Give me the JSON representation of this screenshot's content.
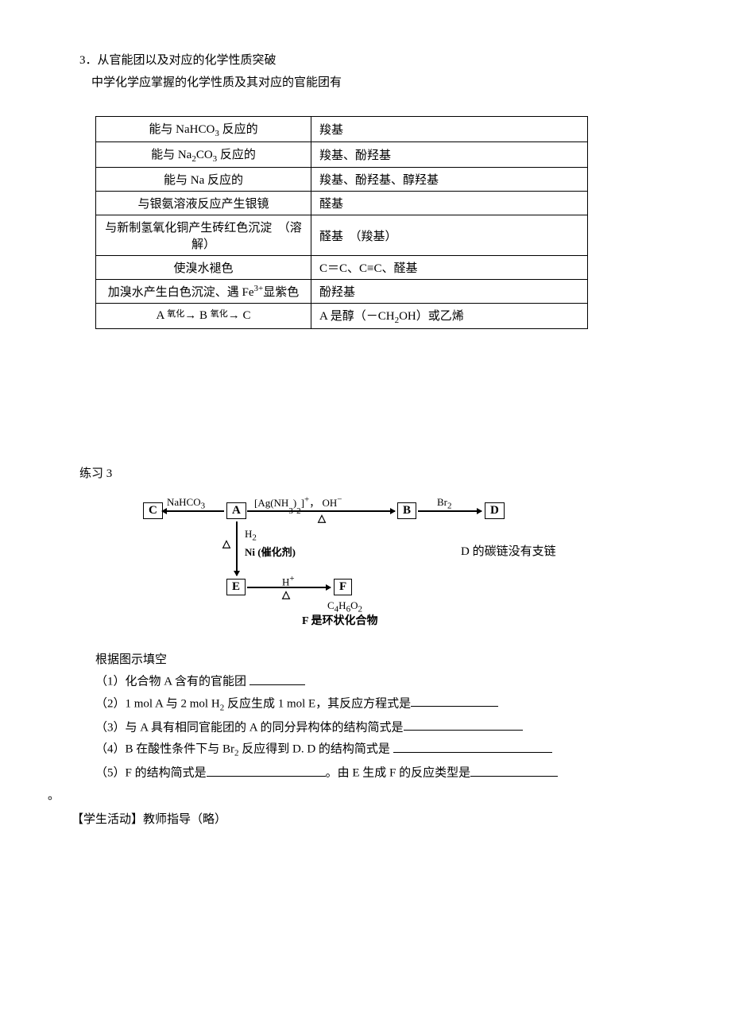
{
  "heading": {
    "line1": "3．从官能团以及对应的化学性质突破",
    "line2": "中学化学应掌握的化学性质及其对应的官能团有"
  },
  "table": {
    "rows": [
      {
        "left_html": "能与 NaHCO<span class='sub'>3</span> 反应的",
        "right": "羧基",
        "left_align": "c"
      },
      {
        "left_html": "能与 Na<span class='sub'>2</span>CO<span class='sub'>3</span> 反应的",
        "right": "羧基、酚羟基",
        "left_align": "c"
      },
      {
        "left_html": "能与 Na 反应的",
        "right": "羧基、酚羟基、醇羟基",
        "left_align": "c"
      },
      {
        "left_html": "与银氨溶液反应产生银镜",
        "right": "醛基",
        "left_align": "c"
      },
      {
        "left_html": "与新制氢氧化铜产生砖红色沉淀　（溶解）",
        "right": "醛基　（羧基）",
        "left_align": "c"
      },
      {
        "left_html": "使溴水褪色",
        "right": "C＝C、C≡C、醛基",
        "left_align": "c"
      },
      {
        "left_html": "加溴水产生白色沉淀、遇 Fe<span class='sup'>3+</span>显紫色",
        "right": "酚羟基",
        "left_align": "c"
      },
      {
        "left_html": "A <span class='arrow-label'>氧化</span>→ B <span class='arrow-label'>氧化</span>→ C",
        "right_html": "A 是醇（－CH<span class='sub'>2</span>OH）或乙烯",
        "left_align": "c"
      }
    ]
  },
  "exercise": {
    "title": "练习 3",
    "diagram": {
      "nodes": {
        "C": "C",
        "A": "A",
        "B": "B",
        "D": "D",
        "E": "E",
        "F": "F"
      },
      "labels": {
        "nahco3": "NaHCO",
        "nahco3_sub": "3",
        "agnh": "[Ag(NH  ) ]  ，  OH",
        "agnh_sub1": "3",
        "agnh_sub2": "2",
        "agnh_sup": "+",
        "agnh_minus": "−",
        "delta": "△",
        "br2": "Br",
        "br2_sub": "2",
        "h2": "H",
        "h2_sub": "2",
        "ni": "Ni (催化剂)",
        "hplus": "H",
        "hplus_sup": "+",
        "c4h6o2": "C₄H₆O₂",
        "f_ring": "F 是环状化合物",
        "side_note": "D 的碳链没有支链"
      }
    },
    "questions": {
      "intro": "根据图示填空",
      "q1": "（1）化合物 A 含有的官能团",
      "q2a": "（2）1 mol A 与 2 mol H",
      "q2b": " 反应生成 1 mol E，其反应方程式是",
      "q2_sub": "2",
      "q3": "（3）与 A 具有相同官能团的 A 的同分异构体的结构简式是",
      "q4a": "（4）B 在酸性条件下与 Br",
      "q4b": " 反应得到 D. D 的结构简式是",
      "q4_sub": "2",
      "q5a": "（5）F 的结构简式是",
      "q5b": "。由 E 生成 F 的反应类型是"
    }
  },
  "footer": {
    "period": "。",
    "teacher": "【学生活动】教师指导（略）"
  },
  "style": {
    "blank_short": 70,
    "blank_med": 110,
    "blank_long": 150,
    "blank_xlong": 200
  }
}
